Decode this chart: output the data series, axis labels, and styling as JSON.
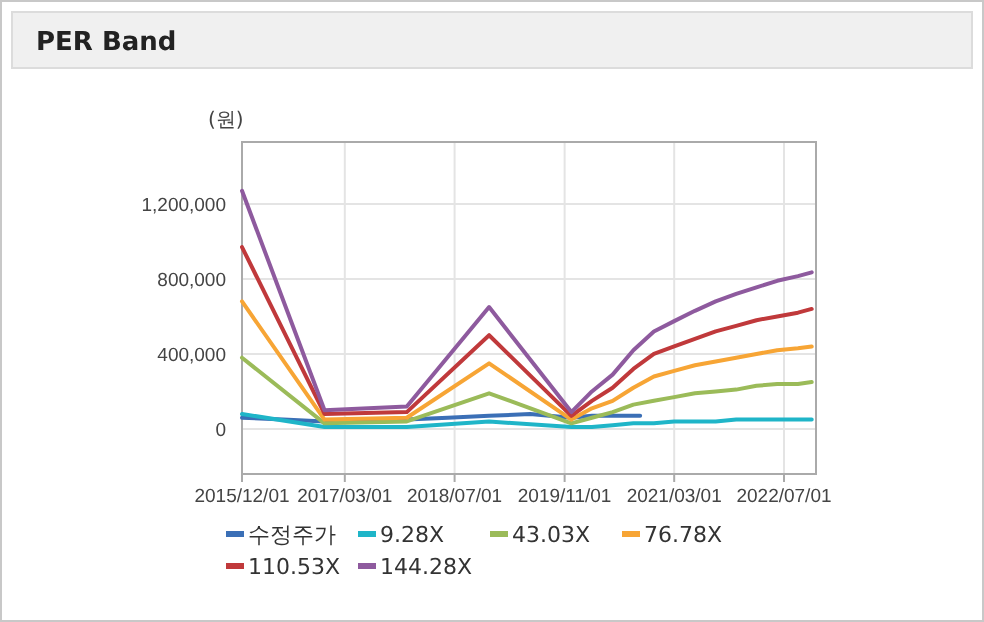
{
  "chart_data": {
    "type": "line",
    "title": "PER Band",
    "ylabel": "(원)",
    "x": [
      "2015-12-01",
      "2016-12-01",
      "2017-12-01",
      "2018-12-01",
      "2019-12-01",
      "2020-03-01",
      "2020-06-01",
      "2020-09-01",
      "2020-12-01",
      "2021-03-01",
      "2021-06-01",
      "2021-09-01",
      "2021-12-01",
      "2022-03-01",
      "2022-06-01",
      "2022-09-01",
      "2022-11-01"
    ],
    "series": [
      {
        "name": "수정주가",
        "color": "#3b6fb6",
        "x": [
          "2015-12-01",
          "2016-06-01",
          "2016-12-01",
          "2017-06-01",
          "2017-12-01",
          "2018-06-01",
          "2018-12-01",
          "2019-06-01",
          "2019-12-01",
          "2020-03-01",
          "2020-06-01",
          "2020-10-01"
        ],
        "values": [
          60000,
          50000,
          40000,
          40000,
          50000,
          60000,
          70000,
          80000,
          60000,
          70000,
          70000,
          70000
        ]
      },
      {
        "name": "9.28X",
        "color": "#1fb5c8",
        "values": [
          80000,
          10000,
          10000,
          40000,
          10000,
          10000,
          20000,
          30000,
          30000,
          40000,
          40000,
          40000,
          50000,
          50000,
          50000,
          50000,
          50000
        ]
      },
      {
        "name": "43.03X",
        "color": "#9bbb59",
        "values": [
          380000,
          30000,
          40000,
          190000,
          30000,
          60000,
          90000,
          130000,
          150000,
          170000,
          190000,
          200000,
          210000,
          230000,
          240000,
          240000,
          250000
        ]
      },
      {
        "name": "76.78X",
        "color": "#f7a535",
        "values": [
          680000,
          50000,
          60000,
          350000,
          50000,
          110000,
          150000,
          220000,
          280000,
          310000,
          340000,
          360000,
          380000,
          400000,
          420000,
          430000,
          440000
        ]
      },
      {
        "name": "110.53X",
        "color": "#c0393b",
        "values": [
          970000,
          80000,
          90000,
          500000,
          70000,
          150000,
          220000,
          320000,
          400000,
          440000,
          480000,
          520000,
          550000,
          580000,
          600000,
          620000,
          640000
        ]
      },
      {
        "name": "144.28X",
        "color": "#8e5a9e",
        "values": [
          1270000,
          100000,
          120000,
          650000,
          90000,
          200000,
          290000,
          420000,
          520000,
          575000,
          630000,
          680000,
          720000,
          755000,
          790000,
          815000,
          835000
        ]
      }
    ],
    "xlim": [
      "2015-12-01",
      "2022-11-20"
    ],
    "xticks": [
      {
        "value": "2015-12-01",
        "label": "2015/12/01"
      },
      {
        "value": "2017-03-01",
        "label": "2017/03/01"
      },
      {
        "value": "2018-07-01",
        "label": "2018/07/01"
      },
      {
        "value": "2019-11-01",
        "label": "2019/11/01"
      },
      {
        "value": "2021-03-01",
        "label": "2021/03/01"
      },
      {
        "value": "2022-07-01",
        "label": "2022/07/01"
      }
    ],
    "ylim": [
      -240000,
      1530000
    ],
    "yticks": [
      {
        "value": 0,
        "label": "0"
      },
      {
        "value": 400000,
        "label": "400,000"
      },
      {
        "value": 800000,
        "label": "800,000"
      },
      {
        "value": 1200000,
        "label": "1,200,000"
      }
    ],
    "grid": true,
    "legend": "bottom",
    "line_style": "solid",
    "marker": "none"
  }
}
